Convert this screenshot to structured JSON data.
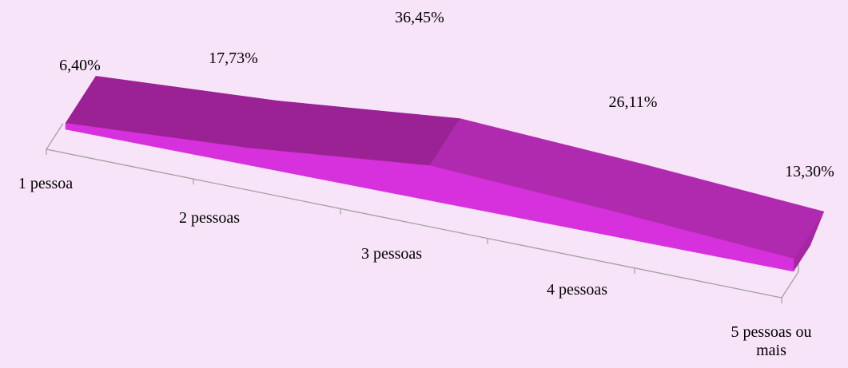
{
  "chart_data": {
    "type": "area",
    "title": "",
    "xlabel": "",
    "ylabel": "",
    "categories": [
      "1 pessoa",
      "2 pessoas",
      "3 pessoas",
      "4 pessoas",
      "5 pessoas ou mais"
    ],
    "values": [
      6.4,
      17.73,
      36.45,
      26.11,
      13.3
    ],
    "value_labels": [
      "6,40%",
      "17,73%",
      "36,45%",
      "26,11%",
      "13,30%"
    ],
    "category_label_lines": [
      [
        "1 pessoa"
      ],
      [
        "2 pessoas"
      ],
      [
        "3 pessoas"
      ],
      [
        "4 pessoas"
      ],
      [
        "5 pessoas ou",
        "mais"
      ]
    ],
    "style": "3d",
    "grid": false,
    "legend": "none",
    "colors": {
      "front_face": "#d631dc",
      "top_face": "#9a2294",
      "top_face_right": "#b02ab0",
      "end_face": "#a627a4",
      "axis": "#a0a0a0",
      "background": "#f8e4f8"
    }
  }
}
